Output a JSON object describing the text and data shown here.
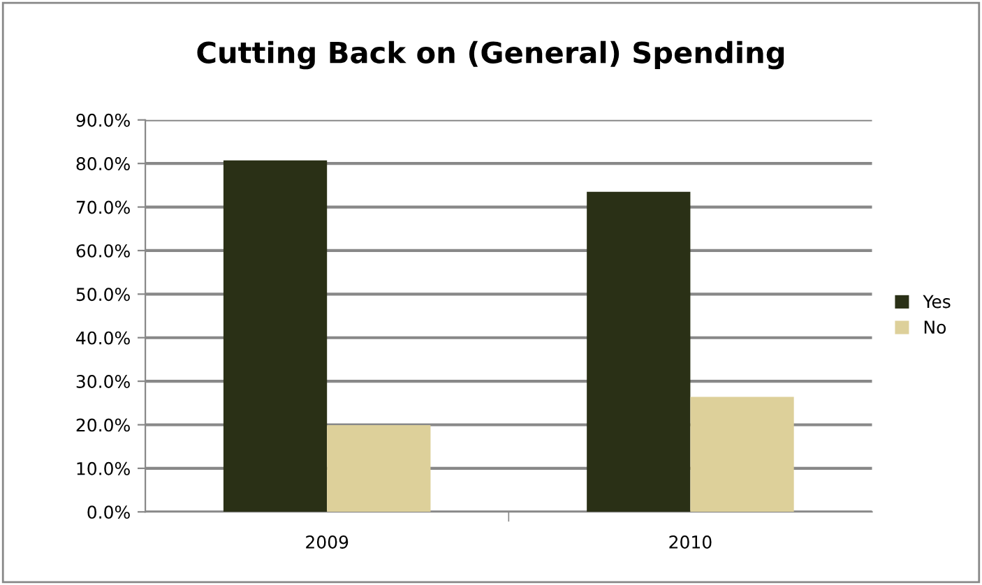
{
  "chart_data": {
    "type": "bar",
    "title": "Cutting Back on (General) Spending",
    "categories": [
      "2009",
      "2010"
    ],
    "series": [
      {
        "name": "Yes",
        "color": "#2a3016",
        "values": [
          80.7,
          73.5
        ]
      },
      {
        "name": "No",
        "color": "#ddd09a",
        "values": [
          19.9,
          26.4
        ]
      }
    ],
    "ylim": [
      0,
      90
    ],
    "yticks": [
      {
        "value": 0,
        "label": "0.0%"
      },
      {
        "value": 10,
        "label": "10.0%"
      },
      {
        "value": 20,
        "label": "20.0%"
      },
      {
        "value": 30,
        "label": "30.0%"
      },
      {
        "value": 40,
        "label": "40.0%"
      },
      {
        "value": 50,
        "label": "50.0%"
      },
      {
        "value": 60,
        "label": "60.0%"
      },
      {
        "value": 70,
        "label": "70.0%"
      },
      {
        "value": 80,
        "label": "80.0%"
      },
      {
        "value": 90,
        "label": "90.0%"
      }
    ],
    "grid": "y",
    "legend": "right"
  }
}
